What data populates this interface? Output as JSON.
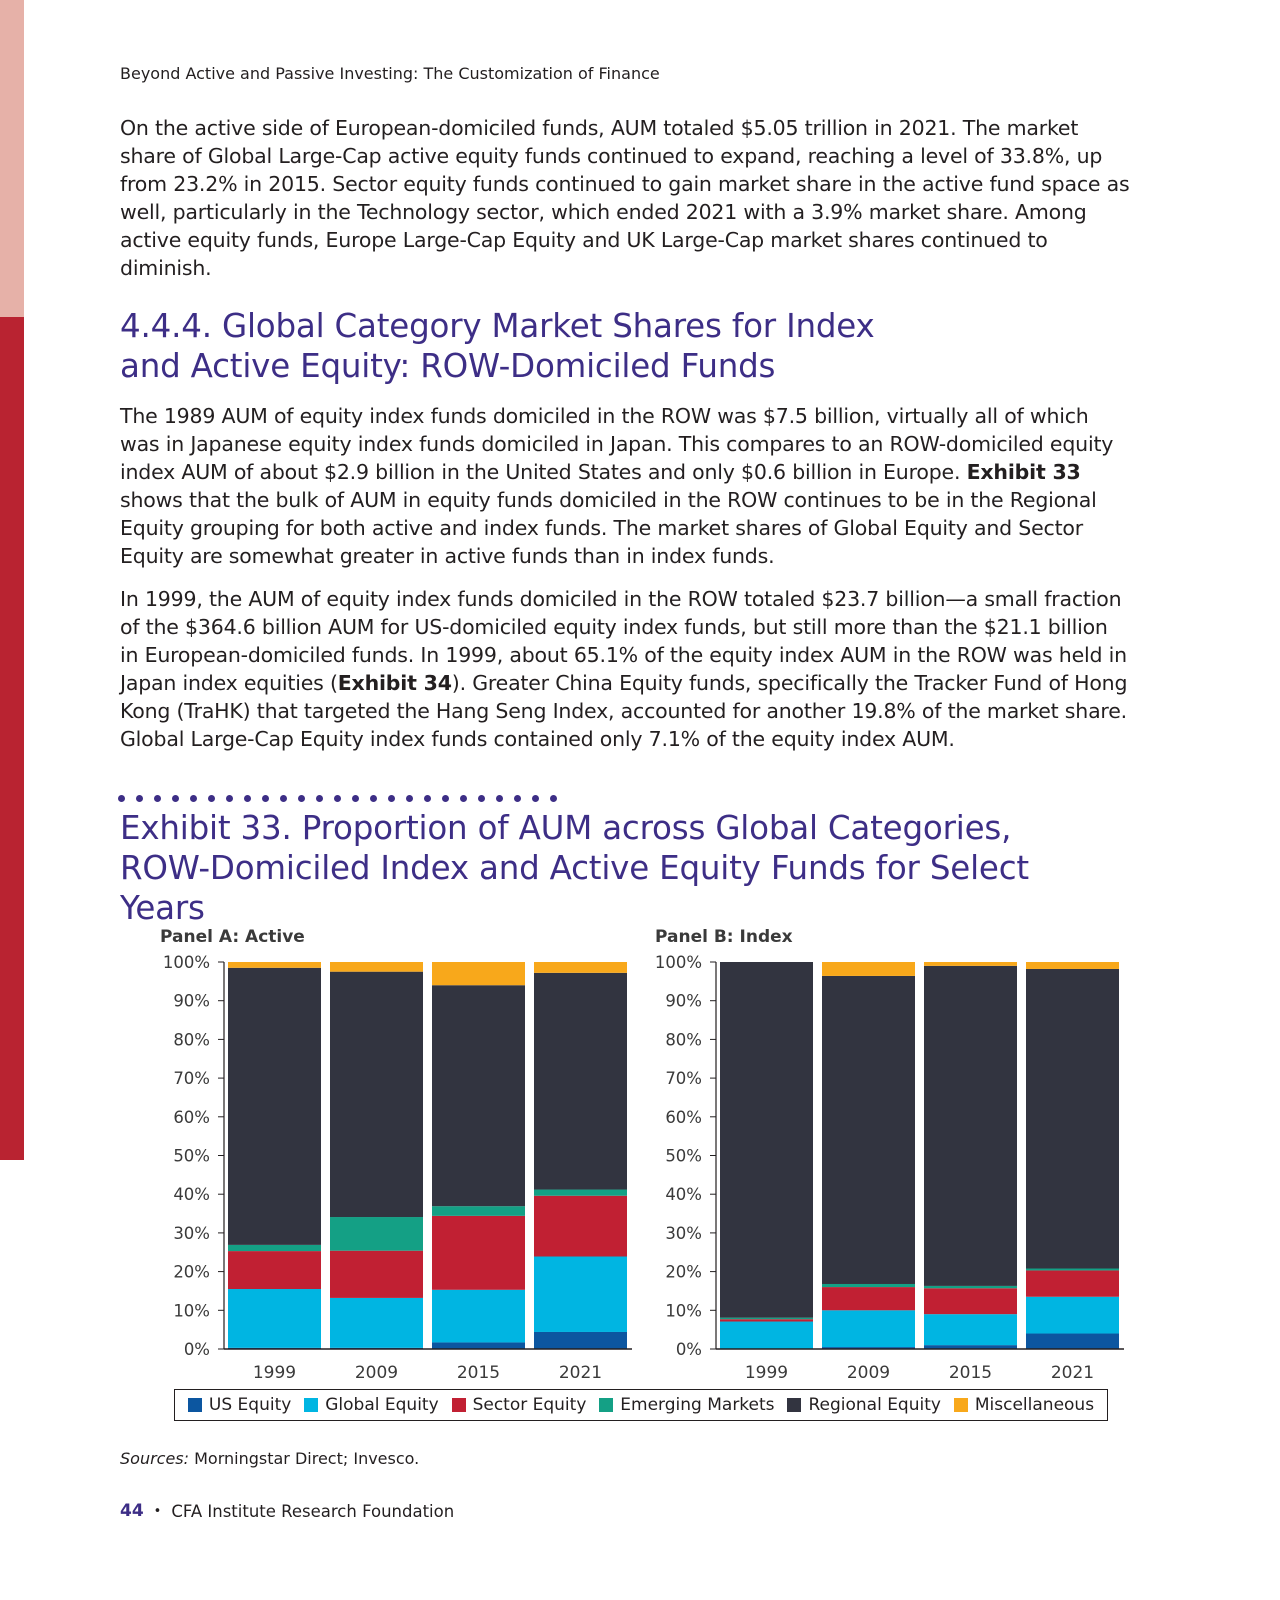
{
  "page": {
    "running_head": "Beyond Active and Passive Investing: The Customization of Finance",
    "para1": "On the active side of European-domiciled funds, AUM totaled $5.05 trillion in 2021. The market share of Global Large-Cap active equity funds continued to expand, reaching a level of 33.8%, up from 23.2% in 2015. Sector equity funds continued to gain market share in the active fund space as well, particularly in the Technology sector, which ended 2021 with a 3.9% market share. Among active equity funds, Europe Large-Cap Equity and UK Large-Cap market shares continued to diminish.",
    "section_heading": "4.4.4. Global Category Market Shares for Index and Active Equity: ROW-Domiciled Funds",
    "para2_a": "The 1989 AUM of equity index funds domiciled in the ROW was $7.5 billion, virtually all of which was in Japanese equity index funds domiciled in Japan. This compares to an ROW-domiciled equity index AUM of about $2.9 billion in the United States and only $0.6 billion in Europe.",
    "para2_bold": "Exhibit 33",
    "para2_b": "shows that the bulk of AUM in equity funds domiciled in the ROW continues to be in the Regional Equity grouping for both active and index funds. The market shares of Global Equity and Sector Equity are somewhat greater in active funds than in index funds.",
    "para3_a": "In 1999, the AUM of equity index funds domiciled in the ROW totaled $23.7 billion—a small fraction of the $364.6 billion AUM for US-domiciled equity index funds, but still more than the $21.1 billion in European-domiciled funds. In 1999, about 65.1% of the equity index AUM in the ROW was held in Japan index equities (",
    "para3_bold": "Exhibit 34",
    "para3_b": "). Greater China Equity funds, specifically the Tracker Fund of Hong Kong (TraHK) that targeted the Hang Seng Index, accounted for another 19.8% of the market share. Global Large-Cap Equity index funds contained only 7.1% of the equity index AUM.",
    "exhibit_title": "Exhibit 33. Proportion of AUM across Global Categories, ROW-Domiciled Index and Active Equity Funds for Select Years",
    "sources_label": "Sources:",
    "sources_text": " Morningstar Direct; Invesco.",
    "page_number": "44",
    "footer_text": "CFA Institute Research Foundation",
    "bullet": "•"
  },
  "colors": {
    "US Equity": "#0c56a0",
    "Global Equity": "#00b5e2",
    "Sector Equity": "#c12033",
    "Emerging Markets": "#14a085",
    "Regional Equity": "#323440",
    "Miscellaneous": "#f8a81b",
    "accent": "#3d2e86"
  },
  "chart_data": [
    {
      "type": "bar",
      "stacked": true,
      "title": "Panel A: Active",
      "categories": [
        "1999",
        "2009",
        "2015",
        "2021"
      ],
      "ylim": [
        0,
        100
      ],
      "yticks": [
        "0%",
        "10%",
        "20%",
        "30%",
        "40%",
        "50%",
        "60%",
        "70%",
        "80%",
        "90%",
        "100%"
      ],
      "series": [
        {
          "name": "US Equity",
          "values": [
            0.3,
            0.3,
            1.7,
            4.4
          ]
        },
        {
          "name": "Global Equity",
          "values": [
            15.2,
            12.9,
            13.6,
            19.5
          ]
        },
        {
          "name": "Sector Equity",
          "values": [
            9.8,
            12.2,
            19.1,
            15.7
          ]
        },
        {
          "name": "Emerging Markets",
          "values": [
            1.6,
            8.7,
            2.5,
            1.6
          ]
        },
        {
          "name": "Regional Equity",
          "values": [
            71.6,
            63.4,
            57.1,
            56.0
          ]
        },
        {
          "name": "Miscellaneous",
          "values": [
            1.5,
            2.5,
            6.0,
            2.8
          ]
        }
      ]
    },
    {
      "type": "bar",
      "stacked": true,
      "title": "Panel B: Index",
      "categories": [
        "1999",
        "2009",
        "2015",
        "2021"
      ],
      "ylim": [
        0,
        100
      ],
      "yticks": [
        "0%",
        "10%",
        "20%",
        "30%",
        "40%",
        "50%",
        "60%",
        "70%",
        "80%",
        "90%",
        "100%"
      ],
      "series": [
        {
          "name": "US Equity",
          "values": [
            0.0,
            0.5,
            1.0,
            4.0
          ]
        },
        {
          "name": "Global Equity",
          "values": [
            7.1,
            9.5,
            8.0,
            9.5
          ]
        },
        {
          "name": "Sector Equity",
          "values": [
            0.6,
            6.0,
            6.7,
            6.8
          ]
        },
        {
          "name": "Emerging Markets",
          "values": [
            0.4,
            0.8,
            0.6,
            0.5
          ]
        },
        {
          "name": "Regional Equity",
          "values": [
            91.9,
            79.6,
            82.7,
            77.4
          ]
        },
        {
          "name": "Miscellaneous",
          "values": [
            0.0,
            3.6,
            1.0,
            1.8
          ]
        }
      ]
    }
  ],
  "legend": [
    {
      "label": "US Equity",
      "color": "#0c56a0"
    },
    {
      "label": "Global Equity",
      "color": "#00b5e2"
    },
    {
      "label": "Sector Equity",
      "color": "#c12033"
    },
    {
      "label": "Emerging Markets",
      "color": "#14a085"
    },
    {
      "label": "Regional Equity",
      "color": "#323440"
    },
    {
      "label": "Miscellaneous",
      "color": "#f8a81b"
    }
  ]
}
